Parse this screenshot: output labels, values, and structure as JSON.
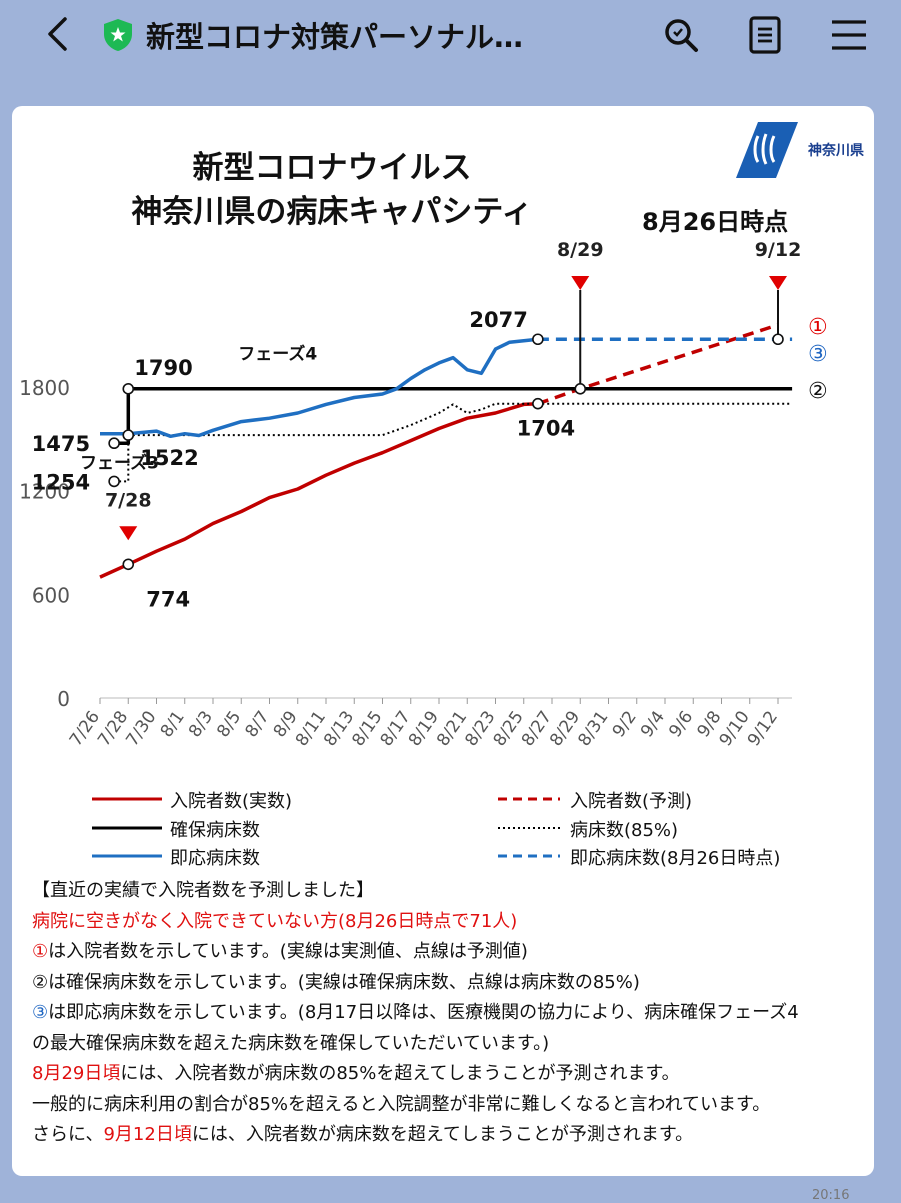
{
  "topbar": {
    "title": "新型コロナ対策パーソナル…",
    "back_icon": "chevron-left-icon",
    "verified_icon": "green-shield-star-icon",
    "search_icon": "search-icon",
    "menu_icon": "document-icon",
    "more_icon": "hamburger-icon"
  },
  "chart": {
    "title_line1": "新型コロナウイルス",
    "title_line2": "神奈川県の病床キャパシティ",
    "as_of": "8月26日時点",
    "logo_text": "神奈川県"
  },
  "chart_data": {
    "type": "line",
    "title": "新型コロナウイルス 神奈川県の病床キャパシティ",
    "ylim": [
      0,
      2200
    ],
    "yticks": [
      "0",
      "600",
      "1200",
      "1800"
    ],
    "categories": [
      "7/26",
      "7/28",
      "7/30",
      "8/1",
      "8/3",
      "8/5",
      "8/7",
      "8/9",
      "8/11",
      "8/13",
      "8/15",
      "8/17",
      "8/19",
      "8/21",
      "8/23",
      "8/25",
      "8/27",
      "8/29",
      "8/31",
      "9/2",
      "9/4",
      "9/6",
      "9/8",
      "9/10",
      "9/12"
    ],
    "series": [
      {
        "name": "入院者数(実数)",
        "color": "#c00000",
        "style": "solid",
        "x": [
          "7/26",
          "7/28",
          "7/30",
          "8/1",
          "8/3",
          "8/5",
          "8/7",
          "8/9",
          "8/11",
          "8/13",
          "8/15",
          "8/17",
          "8/19",
          "8/21",
          "8/23",
          "8/25",
          "8/26"
        ],
        "values": [
          700,
          774,
          850,
          920,
          1010,
          1080,
          1160,
          1210,
          1290,
          1360,
          1420,
          1490,
          1560,
          1620,
          1650,
          1700,
          1704
        ]
      },
      {
        "name": "入院者数(予測)",
        "color": "#c00000",
        "style": "dashed",
        "x": [
          "8/26",
          "8/29",
          "9/12"
        ],
        "values": [
          1704,
          1790,
          2160
        ]
      },
      {
        "name": "確保病床数",
        "color": "#000000",
        "style": "solid",
        "x": [
          "7/27",
          "7/28",
          "7/28",
          "9/13"
        ],
        "values": [
          1475,
          1475,
          1790,
          1790
        ]
      },
      {
        "name": "病床数(85%)",
        "color": "#000000",
        "style": "dotted",
        "x": [
          "7/27",
          "7/28",
          "7/28",
          "8/15",
          "8/17",
          "8/19",
          "8/20",
          "8/21",
          "8/22",
          "8/23",
          "9/13"
        ],
        "values": [
          1254,
          1254,
          1522,
          1522,
          1580,
          1650,
          1700,
          1650,
          1670,
          1704,
          1704
        ]
      },
      {
        "name": "即応病床数",
        "color": "#1f6fc2",
        "style": "solid",
        "x": [
          "7/26",
          "7/28",
          "7/30",
          "7/31",
          "8/1",
          "8/2",
          "8/3",
          "8/5",
          "8/7",
          "8/9",
          "8/11",
          "8/13",
          "8/15",
          "8/16",
          "8/17",
          "8/18",
          "8/19",
          "8/20",
          "8/21",
          "8/22",
          "8/23",
          "8/24",
          "8/26"
        ],
        "values": [
          1530,
          1530,
          1545,
          1515,
          1530,
          1520,
          1550,
          1600,
          1620,
          1650,
          1700,
          1740,
          1760,
          1790,
          1850,
          1900,
          1940,
          1970,
          1900,
          1880,
          2020,
          2060,
          2077
        ]
      },
      {
        "name": "即応病床数(8月26日時点)",
        "color": "#1f6fc2",
        "style": "dashed",
        "x": [
          "8/26",
          "9/13"
        ],
        "values": [
          2077,
          2077
        ]
      }
    ],
    "annotations": [
      {
        "label": "1790",
        "x": "7/28",
        "y": 1790
      },
      {
        "label": "1475",
        "x": "7/27",
        "y": 1475
      },
      {
        "label": "1254",
        "x": "7/27",
        "y": 1254
      },
      {
        "label": "1522",
        "x": "7/28",
        "y": 1522
      },
      {
        "label": "774",
        "x": "7/28",
        "y": 774
      },
      {
        "label": "2077",
        "x": "8/26",
        "y": 2077
      },
      {
        "label": "1704",
        "x": "8/26",
        "y": 1704
      },
      {
        "label": "フェーズ4",
        "x": "8/9",
        "y": 1960
      },
      {
        "label": "フェーズ3",
        "x": "7/26",
        "y": 1330
      }
    ],
    "markers": [
      {
        "label": "7/28",
        "x": "7/28"
      },
      {
        "label": "8/29",
        "x": "8/29"
      },
      {
        "label": "9/12",
        "x": "9/12"
      }
    ],
    "circled_labels": [
      "①",
      "②",
      "③"
    ]
  },
  "legend": {
    "actual": "入院者数(実数)",
    "forecast": "入院者数(予測)",
    "secured": "確保病床数",
    "beds85": "病床数(85%)",
    "ready": "即応病床数",
    "ready_asof": "即応病床数(8月26日時点)"
  },
  "notes": {
    "line1": "【直近の実績で入院者数を予測しました】",
    "line2": "病院に空きがなく入院できていない方(8月26日時点で71人)",
    "line3_mark": "①",
    "line3": "は入院者数を示しています。(実線は実測値、点線は予測値)",
    "line4": "②は確保病床数を示しています。(実線は確保病床数、点線は病床数の85%)",
    "line5_mark": "③",
    "line5": "は即応病床数を示しています。(8月17日以降は、医療機関の協力により、病床確保フェーズ4",
    "line6": "の最大確保病床数を超えた病床数を確保していただいています。)",
    "line7_red": "8月29日頃",
    "line7": "には、入院者数が病床数の85%を超えてしまうことが予測されます。",
    "line8": "一般的に病床利用の割合が85%を超えると入院調整が非常に難しくなると言われています。",
    "line9_pre": "さらに、",
    "line9_red": "9月12日頃",
    "line9": "には、入院者数が病床数を超えてしまうことが予測されます。"
  },
  "status": {
    "time": "20:16"
  }
}
